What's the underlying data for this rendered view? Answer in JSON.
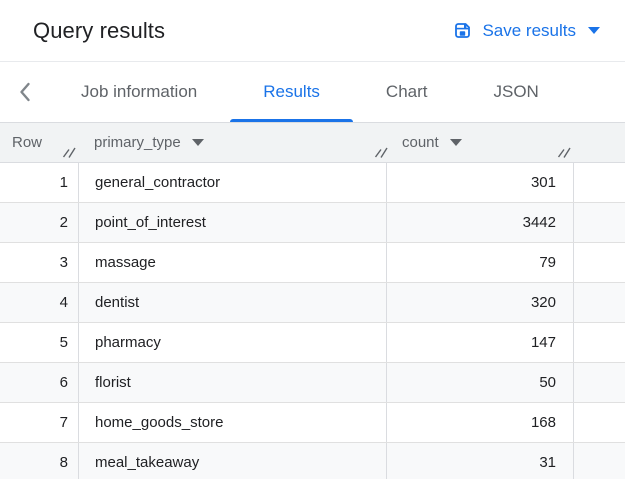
{
  "colors": {
    "accent_blue": "#1a73e8",
    "title_text": "#202124",
    "inactive_tab_text": "#5f6368",
    "table_header_bg": "#f1f3f4",
    "row_stripe_bg": "#f8f9fa",
    "body_text": "#202124",
    "column_border": "#dadce0",
    "row_border": "#e0e0e0"
  },
  "titlebar": {
    "title": "Query results",
    "save_button": {
      "label": "Save results",
      "icon": "save-icon",
      "dropdown_icon": "caret-down-icon"
    }
  },
  "tabbar": {
    "back_icon": "chevron-left-icon",
    "tabs": [
      {
        "label": "Job information",
        "active": false
      },
      {
        "label": "Results",
        "active": true
      },
      {
        "label": "Chart",
        "active": false
      },
      {
        "label": "JSON",
        "active": false
      }
    ]
  },
  "results_table": {
    "columns": [
      {
        "label": "Row",
        "sortable": false
      },
      {
        "label": "primary_type",
        "sortable": true,
        "menu_icon": "caret-down-icon"
      },
      {
        "label": "count",
        "sortable": true,
        "menu_icon": "caret-down-icon"
      }
    ],
    "resize_handle_icon": "column-resize-handle-icon",
    "rows": [
      {
        "row": "1",
        "primary_type": "general_contractor",
        "count": "301"
      },
      {
        "row": "2",
        "primary_type": "point_of_interest",
        "count": "3442"
      },
      {
        "row": "3",
        "primary_type": "massage",
        "count": "79"
      },
      {
        "row": "4",
        "primary_type": "dentist",
        "count": "320"
      },
      {
        "row": "5",
        "primary_type": "pharmacy",
        "count": "147"
      },
      {
        "row": "6",
        "primary_type": "florist",
        "count": "50"
      },
      {
        "row": "7",
        "primary_type": "home_goods_store",
        "count": "168"
      },
      {
        "row": "8",
        "primary_type": "meal_takeaway",
        "count": "31"
      }
    ]
  }
}
